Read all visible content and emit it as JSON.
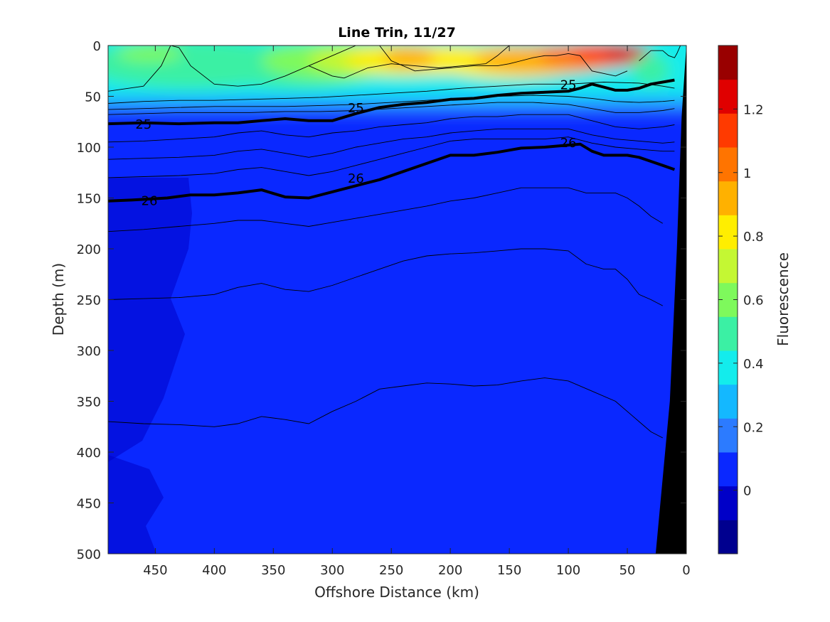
{
  "chart_data": {
    "type": "heatmap",
    "title": "Line Trin, 11/27",
    "xlabel": "Offshore Distance (km)",
    "ylabel": "Depth (m)",
    "colorbar_label": "Fluorescence",
    "xlim": [
      490,
      0
    ],
    "ylim": [
      0,
      500
    ],
    "x_reversed": true,
    "y_reversed": true,
    "xticks": [
      450,
      400,
      350,
      300,
      250,
      200,
      150,
      100,
      50,
      0
    ],
    "yticks": [
      0,
      50,
      100,
      150,
      200,
      250,
      300,
      350,
      400,
      450,
      500
    ],
    "clim": [
      -0.2,
      1.4
    ],
    "colorbar_ticks": [
      0,
      0.2,
      0.4,
      0.6,
      0.8,
      1,
      1.2
    ],
    "colorbar_colors": [
      "#00008f",
      "#0000c8",
      "#0a28ff",
      "#2c7bff",
      "#14b8ff",
      "#13ecec",
      "#3bf0a4",
      "#7ef95c",
      "#c4f733",
      "#ffee00",
      "#ffb100",
      "#ff7400",
      "#ff3a00",
      "#e00000",
      "#990000"
    ],
    "color_regions": [
      {
        "label": "deep offshore low fluorescence",
        "value": -0.05,
        "color": "#0000c8",
        "x_range": [
          490,
          400
        ],
        "depth_range": [
          130,
          500
        ]
      },
      {
        "label": "background subsurface",
        "value": 0.05,
        "color": "#0a28ff",
        "x_range": [
          490,
          0
        ],
        "depth_range": [
          60,
          500
        ]
      },
      {
        "label": "surface mixed layer",
        "value": 0.5,
        "color": "#3bf0a4",
        "x_range": [
          490,
          0
        ],
        "depth_range": [
          0,
          45
        ]
      },
      {
        "label": "nearshore surface maximum",
        "value": 1.3,
        "color": "#d60000",
        "x_range": [
          90,
          25
        ],
        "depth_range": [
          0,
          20
        ]
      }
    ],
    "series": [
      {
        "name": "25",
        "x": [
          490,
          460,
          430,
          400,
          380,
          360,
          340,
          320,
          300,
          280,
          260,
          240,
          220,
          200,
          180,
          160,
          140,
          120,
          100,
          90,
          80,
          70,
          60,
          50,
          40,
          30,
          20,
          10
        ],
        "y": [
          77,
          76,
          77,
          76,
          76,
          74,
          72,
          74,
          74,
          67,
          61,
          58,
          56,
          53,
          52,
          49,
          47,
          46,
          45,
          42,
          38,
          41,
          44,
          44,
          42,
          38,
          36,
          34
        ],
        "style": "bold"
      },
      {
        "name": "26",
        "x": [
          490,
          470,
          440,
          420,
          400,
          380,
          360,
          340,
          320,
          300,
          280,
          260,
          240,
          220,
          200,
          180,
          160,
          140,
          120,
          100,
          90,
          80,
          70,
          60,
          50,
          40,
          30,
          20,
          10
        ],
        "y": [
          153,
          152,
          150,
          147,
          147,
          145,
          142,
          149,
          150,
          144,
          138,
          132,
          124,
          116,
          108,
          108,
          105,
          101,
          100,
          98,
          97,
          104,
          108,
          108,
          108,
          110,
          114,
          118,
          122
        ],
        "style": "bold"
      }
    ],
    "thin_contours": [
      {
        "x": [
          490,
          460,
          445,
          437,
          430,
          420,
          400,
          380,
          360,
          340,
          320,
          300,
          280
        ],
        "y": [
          45,
          40,
          20,
          0,
          2,
          20,
          38,
          40,
          38,
          30,
          20,
          10,
          0
        ]
      },
      {
        "x": [
          260,
          250,
          240,
          230,
          220,
          200,
          180,
          160,
          150,
          140,
          130,
          120,
          110,
          100,
          90,
          80,
          60,
          50
        ],
        "y": [
          0,
          15,
          20,
          25,
          24,
          22,
          20,
          20,
          18,
          15,
          12,
          10,
          10,
          8,
          10,
          25,
          30,
          25
        ]
      },
      {
        "x": [
          320,
          300,
          290,
          270,
          250,
          230,
          210,
          190,
          170,
          160,
          150
        ],
        "y": [
          20,
          30,
          32,
          22,
          18,
          20,
          22,
          20,
          18,
          10,
          0
        ]
      },
      {
        "x": [
          40,
          30,
          20,
          15,
          10,
          8,
          5
        ],
        "y": [
          15,
          5,
          5,
          10,
          12,
          8,
          0
        ]
      },
      {
        "x": [
          490,
          460,
          430,
          400,
          370,
          340,
          310,
          280,
          250,
          220,
          190,
          160,
          130,
          100,
          70,
          40,
          20,
          10
        ],
        "y": [
          57,
          55,
          54,
          54,
          53,
          52,
          51,
          49,
          47,
          45,
          42,
          40,
          38,
          38,
          36,
          37,
          40,
          42
        ]
      },
      {
        "x": [
          490,
          460,
          430,
          400,
          370,
          340,
          310,
          280,
          250,
          220,
          190,
          160,
          130,
          100,
          80,
          60,
          40,
          20,
          10
        ],
        "y": [
          63,
          62,
          61,
          60,
          60,
          60,
          59,
          58,
          56,
          54,
          52,
          50,
          49,
          50,
          52,
          55,
          56,
          55,
          54
        ]
      },
      {
        "x": [
          490,
          460,
          430,
          400,
          370,
          340,
          310,
          280,
          250,
          220,
          190,
          160,
          130,
          100,
          80,
          60,
          40,
          20,
          10
        ],
        "y": [
          68,
          67,
          66,
          66,
          66,
          65,
          65,
          64,
          62,
          60,
          58,
          56,
          56,
          58,
          62,
          66,
          66,
          64,
          62
        ]
      },
      {
        "x": [
          490,
          460,
          430,
          400,
          380,
          360,
          340,
          320,
          300,
          280,
          260,
          240,
          220,
          200,
          180,
          160,
          140,
          120,
          100,
          80,
          60,
          40,
          20,
          10
        ],
        "y": [
          95,
          94,
          92,
          90,
          86,
          84,
          88,
          90,
          86,
          84,
          80,
          78,
          76,
          72,
          70,
          70,
          68,
          68,
          68,
          74,
          80,
          82,
          80,
          78
        ]
      },
      {
        "x": [
          490,
          460,
          430,
          400,
          380,
          360,
          340,
          320,
          300,
          280,
          260,
          240,
          220,
          200,
          180,
          160,
          140,
          120,
          100,
          80,
          60,
          40,
          20,
          10
        ],
        "y": [
          112,
          111,
          110,
          108,
          104,
          102,
          106,
          110,
          106,
          100,
          96,
          92,
          90,
          86,
          84,
          82,
          82,
          82,
          82,
          88,
          92,
          94,
          96,
          95
        ]
      },
      {
        "x": [
          490,
          460,
          430,
          400,
          380,
          360,
          340,
          320,
          300,
          280,
          260,
          240,
          220,
          200,
          180,
          160,
          140,
          120,
          100,
          80,
          60,
          40,
          20,
          10
        ],
        "y": [
          130,
          129,
          128,
          126,
          122,
          120,
          124,
          128,
          124,
          118,
          112,
          106,
          100,
          94,
          92,
          92,
          92,
          92,
          90,
          96,
          100,
          102,
          104,
          104
        ]
      },
      {
        "x": [
          490,
          460,
          430,
          400,
          380,
          360,
          340,
          320,
          300,
          280,
          260,
          240,
          220,
          200,
          180,
          160,
          140,
          120,
          100,
          85,
          75,
          60,
          50,
          40,
          30,
          20
        ],
        "y": [
          183,
          181,
          178,
          175,
          172,
          172,
          175,
          178,
          174,
          170,
          166,
          162,
          158,
          153,
          150,
          145,
          140,
          140,
          140,
          145,
          145,
          145,
          150,
          158,
          168,
          175
        ]
      },
      {
        "x": [
          490,
          460,
          430,
          400,
          380,
          360,
          340,
          320,
          300,
          280,
          260,
          240,
          220,
          200,
          180,
          160,
          140,
          120,
          100,
          85,
          70,
          60,
          50,
          40,
          30,
          20
        ],
        "y": [
          250,
          249,
          248,
          245,
          238,
          234,
          240,
          242,
          236,
          228,
          220,
          212,
          207,
          205,
          204,
          202,
          200,
          200,
          202,
          215,
          220,
          220,
          230,
          245,
          250,
          256
        ]
      },
      {
        "x": [
          490,
          460,
          430,
          400,
          380,
          360,
          340,
          320,
          300,
          280,
          260,
          240,
          220,
          200,
          180,
          160,
          140,
          120,
          100,
          80,
          60,
          40,
          30,
          20
        ],
        "y": [
          370,
          372,
          373,
          375,
          372,
          365,
          368,
          372,
          360,
          350,
          338,
          335,
          332,
          333,
          335,
          334,
          330,
          327,
          330,
          340,
          350,
          370,
          380,
          386
        ]
      }
    ],
    "contour_labels": [
      {
        "text": "25",
        "x": 460,
        "y": 77,
        "series": "25"
      },
      {
        "text": "25",
        "x": 280,
        "y": 61,
        "series": "25"
      },
      {
        "text": "25",
        "x": 100,
        "y": 38,
        "series": "25"
      },
      {
        "text": "26",
        "x": 455,
        "y": 152,
        "series": "26"
      },
      {
        "text": "26",
        "x": 280,
        "y": 130,
        "series": "26"
      },
      {
        "text": "26",
        "x": 100,
        "y": 95,
        "series": "26"
      }
    ],
    "bathymetry": {
      "label": "seafloor",
      "color": "#000000",
      "x": [
        0,
        0,
        26,
        14,
        8,
        4
      ],
      "y": [
        0,
        500,
        500,
        350,
        200,
        70
      ]
    },
    "grid": false,
    "colorbar_location": "right"
  }
}
